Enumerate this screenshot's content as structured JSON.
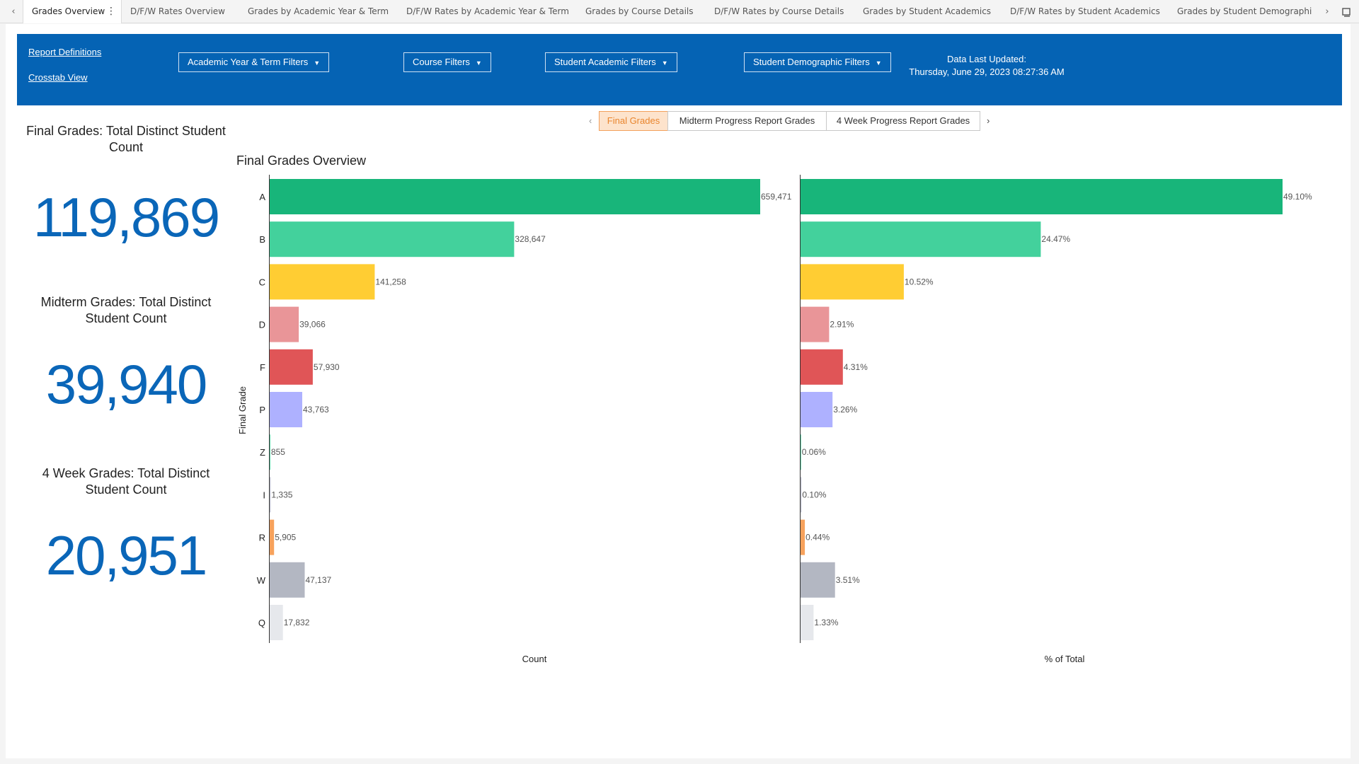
{
  "tabs": {
    "scroll_left": "‹",
    "scroll_right": "›",
    "menu": "⋮",
    "items": [
      "Grades Overview",
      "D/F/W Rates Overview",
      "Grades by Academic Year & Term",
      "D/F/W Rates by Academic Year & Term",
      "Grades by Course Details",
      "D/F/W Rates by Course Details",
      "Grades by Student Academics",
      "D/F/W Rates by Student Academics",
      "Grades by Student Demographics"
    ]
  },
  "header": {
    "report_definitions": "Report Definitions",
    "crosstab_view": "Crosstab View",
    "filters": [
      "Academic Year & Term Filters",
      "Course Filters",
      "Student Academic Filters",
      "Student Demographic Filters"
    ],
    "caret": "▼",
    "updated_label": "Data Last Updated:",
    "updated_value": "Thursday, June 29, 2023 08:27:36 AM",
    "bg_color": "#0563b4"
  },
  "kpis": [
    {
      "title": "Final Grades: Total Distinct Student Count",
      "value": "119,869"
    },
    {
      "title": "Midterm Grades: Total Distinct Student Count",
      "value": "39,940"
    },
    {
      "title": "4 Week Grades: Total Distinct Student Count",
      "value": "20,951"
    }
  ],
  "button_bar": {
    "prev": "‹",
    "next": "›",
    "buttons": [
      "Final Grades",
      "Midterm Progress Report Grades",
      "4 Week Progress Report Grades"
    ],
    "active_index": 0
  },
  "chart_title": "Final Grades Overview",
  "chart_data": [
    {
      "type": "bar",
      "orientation": "horizontal",
      "categories": [
        "A",
        "B",
        "C",
        "D",
        "F",
        "P",
        "Z",
        "I",
        "R",
        "W",
        "Q"
      ],
      "values": [
        659471,
        328647,
        141258,
        39066,
        57930,
        43763,
        855,
        1335,
        5905,
        47137,
        17832
      ],
      "labels": [
        "659,471",
        "328,647",
        "141,258",
        "39,066",
        "57,930",
        "43,763",
        "855",
        "1,335",
        "5,905",
        "47,137",
        "17,832"
      ],
      "colors": [
        "#18b57a",
        "#43d19c",
        "#ffcd33",
        "#e99598",
        "#e05557",
        "#aeb1ff",
        "#4ad1a0",
        "#c5c8d6",
        "#f7a25c",
        "#b3b7c2",
        "#e6e8ec"
      ],
      "xlabel": "Count",
      "ylabel": "Final Grade",
      "xlim": [
        0,
        659471
      ]
    },
    {
      "type": "bar",
      "orientation": "horizontal",
      "categories": [
        "A",
        "B",
        "C",
        "D",
        "F",
        "P",
        "Z",
        "I",
        "R",
        "W",
        "Q"
      ],
      "values": [
        49.1,
        24.47,
        10.52,
        2.91,
        4.31,
        3.26,
        0.06,
        0.1,
        0.44,
        3.51,
        1.33
      ],
      "labels": [
        "49.10%",
        "24.47%",
        "10.52%",
        "2.91%",
        "4.31%",
        "3.26%",
        "0.06%",
        "0.10%",
        "0.44%",
        "3.51%",
        "1.33%"
      ],
      "colors": [
        "#18b57a",
        "#43d19c",
        "#ffcd33",
        "#e99598",
        "#e05557",
        "#aeb1ff",
        "#4ad1a0",
        "#c5c8d6",
        "#f7a25c",
        "#b3b7c2",
        "#e6e8ec"
      ],
      "xlabel": "% of Total",
      "xlim": [
        0,
        49.1
      ]
    }
  ]
}
